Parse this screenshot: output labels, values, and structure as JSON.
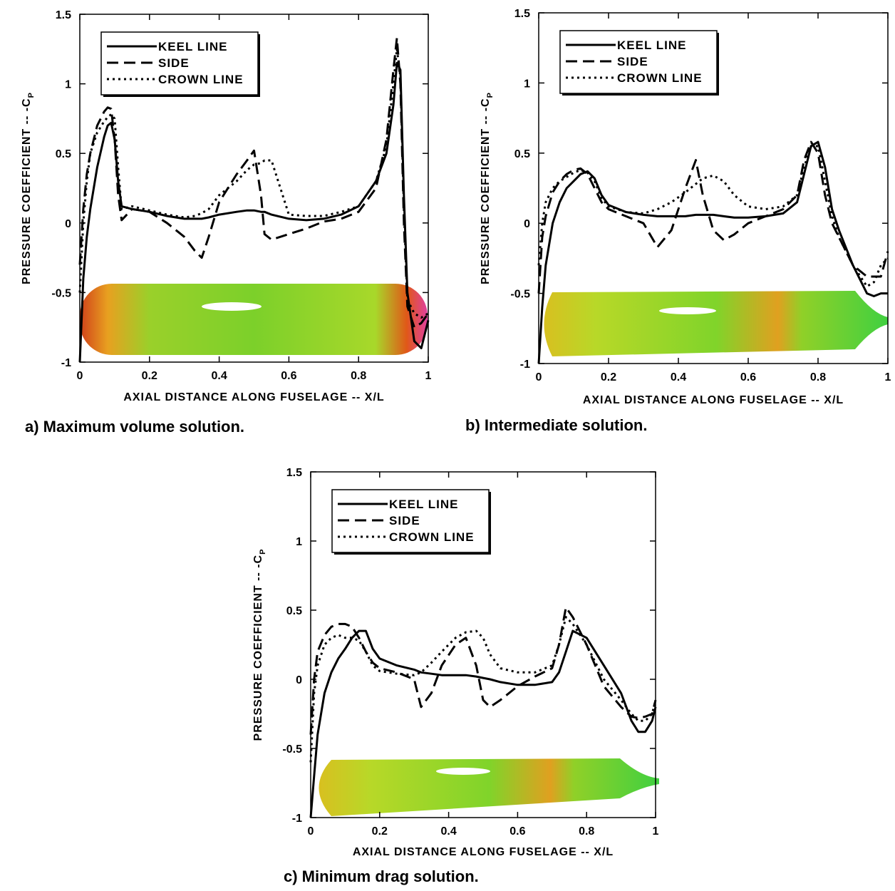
{
  "chart_data": [
    {
      "type": "line",
      "caption": "a) Maximum volume solution.",
      "xlabel": "AXIAL DISTANCE ALONG FUSELAGE -- X/L",
      "ylabel": "PRESSURE COEFFICIENT -- -C",
      "ylabel_sub": "P",
      "xlim": [
        0,
        1
      ],
      "ylim": [
        -1,
        1.5
      ],
      "xticks": [
        0,
        0.2,
        0.4,
        0.6,
        0.8,
        1
      ],
      "yticks": [
        -1,
        -0.5,
        0,
        0.5,
        1,
        1.5
      ],
      "grid": false,
      "legend": "upper left",
      "x": [
        0,
        0.01,
        0.02,
        0.03,
        0.05,
        0.07,
        0.08,
        0.09,
        0.1,
        0.11,
        0.12,
        0.15,
        0.2,
        0.25,
        0.3,
        0.33,
        0.35,
        0.37,
        0.4,
        0.45,
        0.48,
        0.5,
        0.52,
        0.53,
        0.55,
        0.6,
        0.65,
        0.7,
        0.75,
        0.8,
        0.85,
        0.88,
        0.9,
        0.91,
        0.92,
        0.93,
        0.94,
        0.96,
        0.98,
        1.0
      ],
      "series": [
        {
          "name": "KEEL LINE",
          "color": "#000000",
          "style": "solid",
          "values": [
            -1,
            -0.4,
            -0.1,
            0.1,
            0.4,
            0.62,
            0.7,
            0.72,
            0.6,
            0.3,
            0.12,
            0.1,
            0.08,
            0.05,
            0.03,
            0.03,
            0.03,
            0.04,
            0.06,
            0.08,
            0.09,
            0.09,
            0.08,
            0.08,
            0.06,
            0.03,
            0.02,
            0.03,
            0.06,
            0.12,
            0.3,
            0.5,
            0.85,
            1.15,
            1.1,
            0.2,
            -0.5,
            -0.85,
            -0.9,
            -0.7
          ]
        },
        {
          "name": "SIDE",
          "color": "#000000",
          "style": "dashed",
          "values": [
            -0.3,
            0.1,
            0.35,
            0.5,
            0.7,
            0.8,
            0.83,
            0.82,
            0.6,
            0.2,
            0.02,
            0.1,
            0.08,
            0.0,
            -0.1,
            -0.2,
            -0.25,
            -0.1,
            0.15,
            0.35,
            0.45,
            0.52,
            0.2,
            -0.08,
            -0.12,
            -0.08,
            -0.04,
            0.01,
            0.03,
            0.08,
            0.25,
            0.6,
            1.1,
            1.33,
            1.0,
            0.0,
            -0.6,
            -0.75,
            -0.72,
            -0.65
          ]
        },
        {
          "name": "CROWN LINE",
          "color": "#000000",
          "style": "dotted",
          "values": [
            -0.5,
            0.0,
            0.3,
            0.5,
            0.65,
            0.73,
            0.76,
            0.78,
            0.75,
            0.4,
            0.1,
            0.12,
            0.09,
            0.06,
            0.04,
            0.05,
            0.07,
            0.1,
            0.2,
            0.3,
            0.38,
            0.42,
            0.43,
            0.45,
            0.45,
            0.06,
            0.05,
            0.05,
            0.08,
            0.12,
            0.3,
            0.55,
            1.0,
            1.25,
            1.05,
            0.1,
            -0.55,
            -0.65,
            -0.68,
            -0.65
          ]
        }
      ]
    },
    {
      "type": "line",
      "caption": "b) Intermediate solution.",
      "xlabel": "AXIAL DISTANCE ALONG FUSELAGE -- X/L",
      "ylabel": "PRESSURE COEFFICIENT -- -C",
      "ylabel_sub": "P",
      "xlim": [
        0,
        1
      ],
      "ylim": [
        -1,
        1.5
      ],
      "xticks": [
        0,
        0.2,
        0.4,
        0.6,
        0.8,
        1
      ],
      "yticks": [
        -1,
        -0.5,
        0,
        0.5,
        1,
        1.5
      ],
      "grid": false,
      "legend": "upper left",
      "x": [
        0,
        0.01,
        0.02,
        0.04,
        0.06,
        0.08,
        0.1,
        0.12,
        0.14,
        0.16,
        0.18,
        0.2,
        0.25,
        0.3,
        0.34,
        0.38,
        0.42,
        0.45,
        0.47,
        0.5,
        0.53,
        0.56,
        0.6,
        0.65,
        0.7,
        0.74,
        0.76,
        0.78,
        0.8,
        0.82,
        0.84,
        0.86,
        0.9,
        0.94,
        0.96,
        0.98,
        1.0
      ],
      "series": [
        {
          "name": "KEEL LINE",
          "color": "#000000",
          "style": "solid",
          "values": [
            -1,
            -0.6,
            -0.3,
            0.0,
            0.15,
            0.25,
            0.3,
            0.35,
            0.37,
            0.32,
            0.2,
            0.13,
            0.08,
            0.06,
            0.05,
            0.05,
            0.05,
            0.06,
            0.06,
            0.06,
            0.05,
            0.04,
            0.04,
            0.05,
            0.07,
            0.15,
            0.35,
            0.55,
            0.58,
            0.4,
            0.1,
            -0.05,
            -0.3,
            -0.5,
            -0.52,
            -0.5,
            -0.5
          ]
        },
        {
          "name": "SIDE",
          "color": "#000000",
          "style": "dashed",
          "values": [
            -0.5,
            -0.1,
            0.05,
            0.22,
            0.3,
            0.35,
            0.38,
            0.39,
            0.35,
            0.25,
            0.15,
            0.1,
            0.05,
            0.0,
            -0.17,
            -0.05,
            0.25,
            0.45,
            0.2,
            -0.05,
            -0.12,
            -0.08,
            0.0,
            0.05,
            0.1,
            0.2,
            0.45,
            0.58,
            0.5,
            0.2,
            0.0,
            -0.1,
            -0.3,
            -0.38,
            -0.38,
            -0.38,
            -0.2
          ]
        },
        {
          "name": "CROWN LINE",
          "color": "#000000",
          "style": "dotted",
          "values": [
            -0.3,
            0.0,
            0.15,
            0.25,
            0.3,
            0.33,
            0.36,
            0.38,
            0.36,
            0.3,
            0.18,
            0.12,
            0.08,
            0.07,
            0.1,
            0.15,
            0.22,
            0.28,
            0.32,
            0.34,
            0.3,
            0.2,
            0.12,
            0.1,
            0.12,
            0.2,
            0.4,
            0.55,
            0.55,
            0.3,
            0.05,
            -0.1,
            -0.3,
            -0.45,
            -0.42,
            -0.3,
            -0.25
          ]
        }
      ]
    },
    {
      "type": "line",
      "caption": "c) Minimum drag solution.",
      "xlabel": "AXIAL DISTANCE ALONG FUSELAGE -- X/L",
      "ylabel": "PRESSURE COEFFICIENT -- -C",
      "ylabel_sub": "P",
      "xlim": [
        0,
        1
      ],
      "ylim": [
        -1,
        1.5
      ],
      "xticks": [
        0,
        0.2,
        0.4,
        0.6,
        0.8,
        1
      ],
      "yticks": [
        -1,
        -0.5,
        0,
        0.5,
        1,
        1.5
      ],
      "grid": false,
      "legend": "upper left",
      "x": [
        0,
        0.01,
        0.02,
        0.04,
        0.06,
        0.08,
        0.1,
        0.12,
        0.14,
        0.16,
        0.18,
        0.2,
        0.25,
        0.3,
        0.32,
        0.35,
        0.38,
        0.42,
        0.45,
        0.48,
        0.5,
        0.52,
        0.55,
        0.6,
        0.65,
        0.7,
        0.72,
        0.74,
        0.76,
        0.8,
        0.85,
        0.9,
        0.93,
        0.95,
        0.97,
        0.99,
        1.0
      ],
      "series": [
        {
          "name": "KEEL LINE",
          "color": "#000000",
          "style": "solid",
          "values": [
            -1,
            -0.7,
            -0.4,
            -0.1,
            0.05,
            0.15,
            0.22,
            0.3,
            0.35,
            0.35,
            0.22,
            0.15,
            0.1,
            0.07,
            0.05,
            0.04,
            0.03,
            0.03,
            0.03,
            0.02,
            0.01,
            0.0,
            -0.02,
            -0.04,
            -0.04,
            -0.02,
            0.05,
            0.2,
            0.35,
            0.3,
            0.1,
            -0.1,
            -0.3,
            -0.38,
            -0.38,
            -0.3,
            -0.2
          ]
        },
        {
          "name": "SIDE",
          "color": "#000000",
          "style": "dashed",
          "values": [
            -0.4,
            0.0,
            0.2,
            0.32,
            0.38,
            0.4,
            0.4,
            0.38,
            0.3,
            0.2,
            0.12,
            0.08,
            0.05,
            0.0,
            -0.2,
            -0.1,
            0.1,
            0.25,
            0.3,
            0.1,
            -0.15,
            -0.2,
            -0.15,
            -0.05,
            0.02,
            0.08,
            0.25,
            0.52,
            0.45,
            0.25,
            -0.05,
            -0.2,
            -0.27,
            -0.28,
            -0.27,
            -0.25,
            -0.15
          ]
        },
        {
          "name": "CROWN LINE",
          "color": "#000000",
          "style": "dotted",
          "values": [
            -0.6,
            -0.1,
            0.1,
            0.25,
            0.3,
            0.32,
            0.3,
            0.3,
            0.28,
            0.2,
            0.1,
            0.06,
            0.04,
            0.03,
            0.05,
            0.12,
            0.2,
            0.3,
            0.34,
            0.35,
            0.3,
            0.18,
            0.08,
            0.05,
            0.05,
            0.1,
            0.25,
            0.45,
            0.4,
            0.25,
            0.0,
            -0.15,
            -0.25,
            -0.3,
            -0.3,
            -0.25,
            -0.15
          ]
        }
      ]
    }
  ]
}
